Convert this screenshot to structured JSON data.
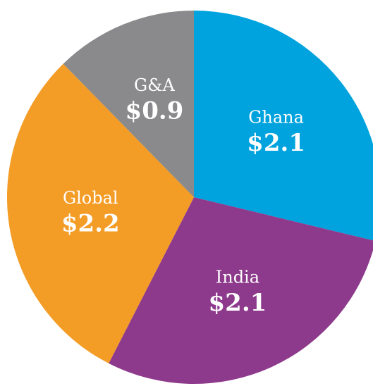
{
  "chart_data": {
    "type": "pie",
    "categories": [
      "Ghana",
      "India",
      "Global",
      "G&A"
    ],
    "values": [
      2.1,
      2.1,
      2.2,
      0.9
    ],
    "value_labels": [
      "$2.1",
      "$2.1",
      "$2.2",
      "$0.9"
    ],
    "colors": [
      "#00a3dd",
      "#8e3a8c",
      "#f39c26",
      "#8a8a8c"
    ]
  }
}
